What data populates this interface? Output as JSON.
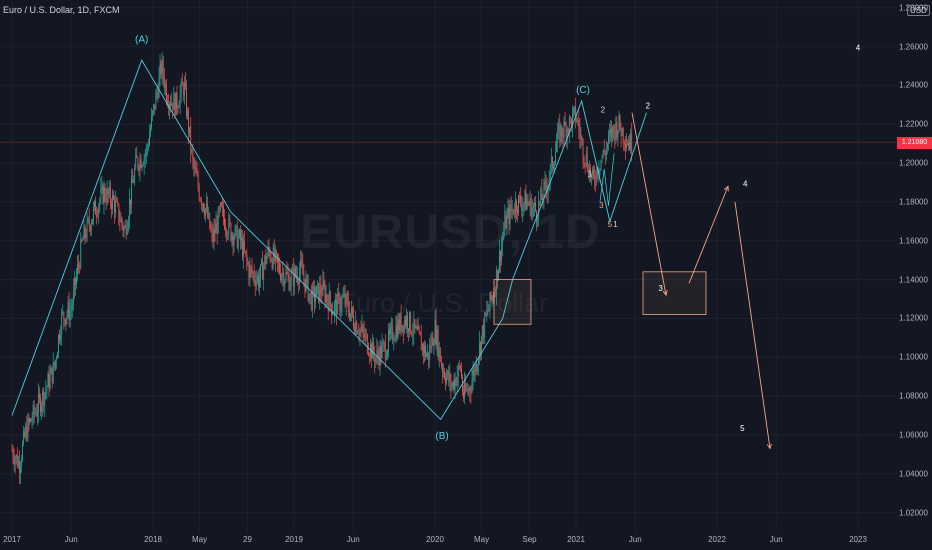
{
  "header": {
    "title": "Euro / U.S. Dollar, 1D, FXCM",
    "currency": "USD"
  },
  "watermark": {
    "symbol": "EURUSD, 1D",
    "name": "Euro / U.S. Dollar"
  },
  "current_price": "1.21080",
  "price_axis": {
    "min": 1.01,
    "max": 1.284,
    "ticks": [
      {
        "value": 1.28,
        "label": "1.28000"
      },
      {
        "value": 1.26,
        "label": "1.26000"
      },
      {
        "value": 1.24,
        "label": "1.24000"
      },
      {
        "value": 1.22,
        "label": "1.22000"
      },
      {
        "value": 1.2,
        "label": "1.20000"
      },
      {
        "value": 1.18,
        "label": "1.18000"
      },
      {
        "value": 1.16,
        "label": "1.16000"
      },
      {
        "value": 1.14,
        "label": "1.14000"
      },
      {
        "value": 1.12,
        "label": "1.12000"
      },
      {
        "value": 1.1,
        "label": "1.10000"
      },
      {
        "value": 1.08,
        "label": "1.08000"
      },
      {
        "value": 1.06,
        "label": "1.06000"
      },
      {
        "value": 1.04,
        "label": "1.04000"
      },
      {
        "value": 1.02,
        "label": "1.02000"
      }
    ]
  },
  "time_axis": {
    "ticks": [
      {
        "label": "2017",
        "t": 0.0
      },
      {
        "label": "Jun",
        "t": 0.42
      },
      {
        "label": "2018",
        "t": 1.0
      },
      {
        "label": "May",
        "t": 1.33
      },
      {
        "label": "29",
        "t": 1.67
      },
      {
        "label": "2019",
        "t": 2.0
      },
      {
        "label": "Jun",
        "t": 2.42
      },
      {
        "label": "2020",
        "t": 3.0
      },
      {
        "label": "May",
        "t": 3.33
      },
      {
        "label": "Sep",
        "t": 3.67
      },
      {
        "label": "2021",
        "t": 4.0
      },
      {
        "label": "Jun",
        "t": 4.42
      },
      {
        "label": "2022",
        "t": 5.0
      },
      {
        "label": "Jun",
        "t": 5.42
      },
      {
        "label": "2023",
        "t": 6.0
      }
    ]
  },
  "colors": {
    "up": "#26a69a",
    "down": "#ef5350",
    "wave": "#4dd0e1",
    "projection": "#f4a582",
    "current_price": "#f23645",
    "background": "#131722"
  },
  "chart_data": {
    "type": "line",
    "title": "Euro / U.S. Dollar, 1D, FXCM",
    "ylim": [
      1.01,
      1.284
    ],
    "xlabel": "",
    "ylabel": "",
    "series": [
      {
        "name": "",
        "x": [
          0.0,
          0.05,
          0.1,
          0.15,
          0.22,
          0.3,
          0.35,
          0.42,
          0.5,
          0.58,
          0.65,
          0.72,
          0.8,
          0.88,
          0.95,
          1.0,
          1.06,
          1.1,
          1.16,
          1.22,
          1.28,
          1.33,
          1.38,
          1.42,
          1.48,
          1.55,
          1.62,
          1.68,
          1.75,
          1.82,
          1.9,
          1.97,
          2.05,
          2.12,
          2.2,
          2.28,
          2.35,
          2.42,
          2.5,
          2.58,
          2.65,
          2.72,
          2.8,
          2.88,
          2.95,
          3.0,
          3.05,
          3.12,
          3.18,
          3.2,
          3.25,
          3.3,
          3.36,
          3.42,
          3.5,
          3.58,
          3.65,
          3.72,
          3.8,
          3.88,
          3.95,
          4.0,
          4.04,
          4.08,
          4.12,
          4.16,
          4.2,
          4.25,
          4.3,
          4.36,
          4.4
        ],
        "values": [
          1.052,
          1.045,
          1.062,
          1.07,
          1.08,
          1.095,
          1.12,
          1.125,
          1.16,
          1.175,
          1.185,
          1.18,
          1.165,
          1.2,
          1.205,
          1.225,
          1.25,
          1.235,
          1.23,
          1.24,
          1.2,
          1.185,
          1.175,
          1.16,
          1.175,
          1.165,
          1.16,
          1.145,
          1.14,
          1.155,
          1.145,
          1.14,
          1.145,
          1.13,
          1.135,
          1.125,
          1.13,
          1.12,
          1.11,
          1.1,
          1.105,
          1.115,
          1.12,
          1.11,
          1.1,
          1.115,
          1.095,
          1.085,
          1.095,
          1.08,
          1.085,
          1.1,
          1.12,
          1.135,
          1.17,
          1.18,
          1.18,
          1.175,
          1.19,
          1.215,
          1.22,
          1.225,
          1.21,
          1.2,
          1.19,
          1.2,
          1.205,
          1.215,
          1.22,
          1.212,
          1.21
        ]
      }
    ],
    "wave_labels": [
      {
        "text": "(A)",
        "t": 0.92,
        "price": 1.262
      },
      {
        "text": "(B)",
        "t": 3.05,
        "price": 1.058
      },
      {
        "text": "(C)",
        "t": 4.05,
        "price": 1.236
      },
      {
        "text": "2",
        "t": 4.19,
        "price": 1.226
      },
      {
        "text": "1",
        "t": 4.1,
        "price": 1.193
      },
      {
        "text": "3",
        "t": 4.18,
        "price": 1.177
      },
      {
        "text": "5",
        "t": 4.24,
        "price": 1.167
      },
      {
        "text": "1",
        "t": 4.28,
        "price": 1.167
      },
      {
        "text": "2",
        "t": 4.51,
        "price": 1.228
      },
      {
        "text": "3",
        "t": 4.6,
        "price": 1.134
      },
      {
        "text": "4",
        "t": 5.2,
        "price": 1.188
      },
      {
        "text": "5",
        "t": 5.18,
        "price": 1.062
      },
      {
        "text": "4",
        "t": 6.0,
        "price": 1.258
      }
    ]
  }
}
